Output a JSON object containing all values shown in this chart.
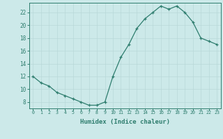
{
  "x": [
    0,
    1,
    2,
    3,
    4,
    5,
    6,
    7,
    8,
    9,
    10,
    11,
    12,
    13,
    14,
    15,
    16,
    17,
    18,
    19,
    20,
    21,
    22,
    23
  ],
  "y": [
    12,
    11,
    10.5,
    9.5,
    9,
    8.5,
    8,
    7.5,
    7.5,
    8,
    12,
    15,
    17,
    19.5,
    21,
    22,
    23,
    22.5,
    23,
    22,
    20.5,
    18,
    17.5,
    17
  ],
  "line_color": "#2e7d6e",
  "marker": "+",
  "marker_color": "#2e7d6e",
  "bg_color": "#cce9e9",
  "grid_color": "#b8d8d8",
  "axis_color": "#2e7d6e",
  "tick_color": "#2e7d6e",
  "xlabel": "Humidex (Indice chaleur)",
  "xlim": [
    -0.5,
    23.5
  ],
  "ylim": [
    7,
    23.5
  ],
  "yticks": [
    8,
    10,
    12,
    14,
    16,
    18,
    20,
    22
  ],
  "xticks": [
    0,
    1,
    2,
    3,
    4,
    5,
    6,
    7,
    8,
    9,
    10,
    11,
    12,
    13,
    14,
    15,
    16,
    17,
    18,
    19,
    20,
    21,
    22,
    23
  ]
}
